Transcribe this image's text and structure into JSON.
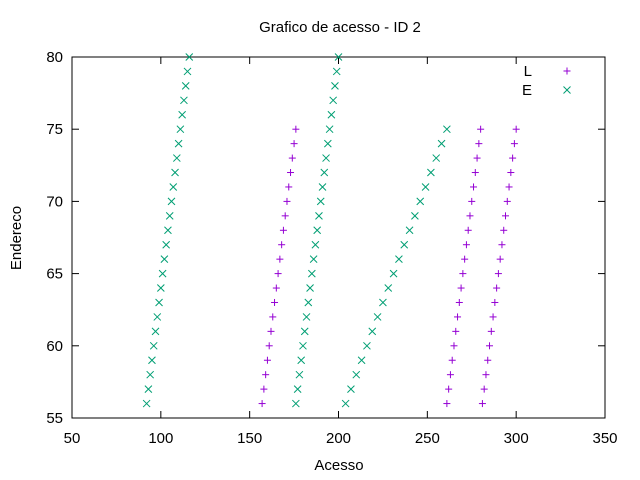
{
  "chart_data": {
    "type": "scatter",
    "title": "Grafico de acesso - ID 2",
    "xlabel": "Acesso",
    "ylabel": "Endereco",
    "xlim": [
      50,
      350
    ],
    "ylim": [
      55,
      80
    ],
    "xticks": [
      "50",
      "100",
      "150",
      "200",
      "250",
      "300",
      "350"
    ],
    "yticks": [
      "55",
      "60",
      "65",
      "70",
      "75",
      "80"
    ],
    "grid": false,
    "legend_position": "top-right",
    "series": [
      {
        "name": "L",
        "marker": "+",
        "color": "#9400d3",
        "points": [
          [
            157,
            56
          ],
          [
            158,
            57
          ],
          [
            159,
            58
          ],
          [
            160,
            59
          ],
          [
            161,
            60
          ],
          [
            162,
            61
          ],
          [
            163,
            62
          ],
          [
            164,
            63
          ],
          [
            165,
            64
          ],
          [
            166,
            65
          ],
          [
            167,
            66
          ],
          [
            168,
            67
          ],
          [
            169,
            68
          ],
          [
            170,
            69
          ],
          [
            171,
            70
          ],
          [
            172,
            71
          ],
          [
            173,
            72
          ],
          [
            174,
            73
          ],
          [
            175,
            74
          ],
          [
            176,
            75
          ],
          [
            261,
            56
          ],
          [
            262,
            57
          ],
          [
            263,
            58
          ],
          [
            264,
            59
          ],
          [
            265,
            60
          ],
          [
            266,
            61
          ],
          [
            267,
            62
          ],
          [
            268,
            63
          ],
          [
            269,
            64
          ],
          [
            270,
            65
          ],
          [
            271,
            66
          ],
          [
            272,
            67
          ],
          [
            273,
            68
          ],
          [
            274,
            69
          ],
          [
            275,
            70
          ],
          [
            276,
            71
          ],
          [
            277,
            72
          ],
          [
            278,
            73
          ],
          [
            279,
            74
          ],
          [
            280,
            75
          ],
          [
            281,
            56
          ],
          [
            282,
            57
          ],
          [
            283,
            58
          ],
          [
            284,
            59
          ],
          [
            285,
            60
          ],
          [
            286,
            61
          ],
          [
            287,
            62
          ],
          [
            288,
            63
          ],
          [
            289,
            64
          ],
          [
            290,
            65
          ],
          [
            291,
            66
          ],
          [
            292,
            67
          ],
          [
            293,
            68
          ],
          [
            294,
            69
          ],
          [
            295,
            70
          ],
          [
            296,
            71
          ],
          [
            297,
            72
          ],
          [
            298,
            73
          ],
          [
            299,
            74
          ],
          [
            300,
            75
          ]
        ]
      },
      {
        "name": "E",
        "marker": "x",
        "color": "#009e73",
        "points": [
          [
            92,
            56
          ],
          [
            93,
            57
          ],
          [
            94,
            58
          ],
          [
            95,
            59
          ],
          [
            96,
            60
          ],
          [
            97,
            61
          ],
          [
            98,
            62
          ],
          [
            99,
            63
          ],
          [
            100,
            64
          ],
          [
            101,
            65
          ],
          [
            102,
            66
          ],
          [
            103,
            67
          ],
          [
            104,
            68
          ],
          [
            105,
            69
          ],
          [
            106,
            70
          ],
          [
            107,
            71
          ],
          [
            108,
            72
          ],
          [
            109,
            73
          ],
          [
            110,
            74
          ],
          [
            111,
            75
          ],
          [
            112,
            76
          ],
          [
            113,
            77
          ],
          [
            114,
            78
          ],
          [
            115,
            79
          ],
          [
            116,
            80
          ],
          [
            176,
            56
          ],
          [
            177,
            57
          ],
          [
            178,
            58
          ],
          [
            179,
            59
          ],
          [
            180,
            60
          ],
          [
            181,
            61
          ],
          [
            182,
            62
          ],
          [
            183,
            63
          ],
          [
            184,
            64
          ],
          [
            185,
            65
          ],
          [
            186,
            66
          ],
          [
            187,
            67
          ],
          [
            188,
            68
          ],
          [
            189,
            69
          ],
          [
            190,
            70
          ],
          [
            191,
            71
          ],
          [
            192,
            72
          ],
          [
            193,
            73
          ],
          [
            194,
            74
          ],
          [
            195,
            75
          ],
          [
            196,
            76
          ],
          [
            197,
            77
          ],
          [
            198,
            78
          ],
          [
            199,
            79
          ],
          [
            200,
            80
          ],
          [
            204,
            56
          ],
          [
            207,
            57
          ],
          [
            210,
            58
          ],
          [
            213,
            59
          ],
          [
            216,
            60
          ],
          [
            219,
            61
          ],
          [
            222,
            62
          ],
          [
            225,
            63
          ],
          [
            228,
            64
          ],
          [
            231,
            65
          ],
          [
            234,
            66
          ],
          [
            237,
            67
          ],
          [
            240,
            68
          ],
          [
            243,
            69
          ],
          [
            246,
            70
          ],
          [
            249,
            71
          ],
          [
            252,
            72
          ],
          [
            255,
            73
          ],
          [
            258,
            74
          ],
          [
            261,
            75
          ]
        ]
      }
    ]
  }
}
